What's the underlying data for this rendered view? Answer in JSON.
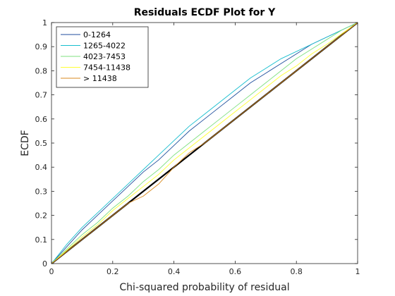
{
  "chart_data": {
    "type": "line",
    "title": "Residuals ECDF Plot for Y",
    "xlabel": "Chi-squared probability of residual",
    "ylabel": "ECDF",
    "xlim": [
      0,
      1
    ],
    "ylim": [
      0,
      1
    ],
    "xticks": [
      "0",
      "0.2",
      "0.4",
      "0.6",
      "0.8",
      "1"
    ],
    "yticks": [
      "0",
      "0.1",
      "0.2",
      "0.3",
      "0.4",
      "0.5",
      "0.6",
      "0.7",
      "0.8",
      "0.9",
      "1"
    ],
    "grid": false,
    "legend_position": "top-left",
    "reference_line": {
      "color": "#000000",
      "points": [
        [
          0,
          0
        ],
        [
          1,
          1
        ]
      ]
    },
    "series": [
      {
        "name": "0-1264",
        "color": "#1f4e9c",
        "points": [
          [
            0,
            0
          ],
          [
            0.05,
            0.07
          ],
          [
            0.1,
            0.14
          ],
          [
            0.15,
            0.2
          ],
          [
            0.2,
            0.26
          ],
          [
            0.25,
            0.32
          ],
          [
            0.3,
            0.38
          ],
          [
            0.35,
            0.43
          ],
          [
            0.4,
            0.49
          ],
          [
            0.45,
            0.55
          ],
          [
            0.5,
            0.6
          ],
          [
            0.55,
            0.65
          ],
          [
            0.6,
            0.7
          ],
          [
            0.65,
            0.75
          ],
          [
            0.7,
            0.79
          ],
          [
            0.75,
            0.83
          ],
          [
            0.8,
            0.87
          ],
          [
            0.85,
            0.91
          ],
          [
            0.9,
            0.94
          ],
          [
            0.95,
            0.97
          ],
          [
            1,
            1
          ]
        ]
      },
      {
        "name": "1265-4022",
        "color": "#17becf",
        "points": [
          [
            0,
            0
          ],
          [
            0.05,
            0.08
          ],
          [
            0.1,
            0.15
          ],
          [
            0.15,
            0.21
          ],
          [
            0.2,
            0.27
          ],
          [
            0.25,
            0.33
          ],
          [
            0.3,
            0.39
          ],
          [
            0.35,
            0.45
          ],
          [
            0.4,
            0.51
          ],
          [
            0.45,
            0.57
          ],
          [
            0.5,
            0.62
          ],
          [
            0.55,
            0.67
          ],
          [
            0.6,
            0.72
          ],
          [
            0.65,
            0.77
          ],
          [
            0.7,
            0.81
          ],
          [
            0.75,
            0.85
          ],
          [
            0.8,
            0.88
          ],
          [
            0.85,
            0.91
          ],
          [
            0.9,
            0.94
          ],
          [
            0.95,
            0.97
          ],
          [
            1,
            1
          ]
        ]
      },
      {
        "name": "4023-7453",
        "color": "#7fe07f",
        "points": [
          [
            0,
            0
          ],
          [
            0.05,
            0.06
          ],
          [
            0.1,
            0.12
          ],
          [
            0.15,
            0.17
          ],
          [
            0.2,
            0.23
          ],
          [
            0.25,
            0.28
          ],
          [
            0.3,
            0.34
          ],
          [
            0.35,
            0.39
          ],
          [
            0.4,
            0.45
          ],
          [
            0.45,
            0.5
          ],
          [
            0.5,
            0.55
          ],
          [
            0.55,
            0.6
          ],
          [
            0.6,
            0.65
          ],
          [
            0.65,
            0.7
          ],
          [
            0.7,
            0.75
          ],
          [
            0.75,
            0.8
          ],
          [
            0.8,
            0.85
          ],
          [
            0.85,
            0.89
          ],
          [
            0.9,
            0.93
          ],
          [
            0.95,
            0.97
          ],
          [
            1,
            1
          ]
        ]
      },
      {
        "name": "7454-11438",
        "color": "#ffff33",
        "points": [
          [
            0,
            0
          ],
          [
            0.05,
            0.055
          ],
          [
            0.1,
            0.11
          ],
          [
            0.15,
            0.16
          ],
          [
            0.2,
            0.22
          ],
          [
            0.25,
            0.27
          ],
          [
            0.3,
            0.32
          ],
          [
            0.35,
            0.37
          ],
          [
            0.4,
            0.43
          ],
          [
            0.45,
            0.48
          ],
          [
            0.5,
            0.53
          ],
          [
            0.55,
            0.58
          ],
          [
            0.6,
            0.63
          ],
          [
            0.65,
            0.68
          ],
          [
            0.7,
            0.73
          ],
          [
            0.75,
            0.78
          ],
          [
            0.8,
            0.82
          ],
          [
            0.85,
            0.87
          ],
          [
            0.9,
            0.91
          ],
          [
            0.95,
            0.955
          ],
          [
            1,
            1
          ]
        ]
      },
      {
        "name": "> 11438",
        "color": "#d98a1f",
        "points": [
          [
            0,
            0
          ],
          [
            0.05,
            0.05
          ],
          [
            0.1,
            0.1
          ],
          [
            0.15,
            0.15
          ],
          [
            0.2,
            0.2
          ],
          [
            0.25,
            0.25
          ],
          [
            0.3,
            0.28
          ],
          [
            0.35,
            0.33
          ],
          [
            0.4,
            0.4
          ],
          [
            0.45,
            0.46
          ],
          [
            0.5,
            0.5
          ],
          [
            0.55,
            0.55
          ],
          [
            0.6,
            0.6
          ],
          [
            0.65,
            0.65
          ],
          [
            0.7,
            0.7
          ],
          [
            0.75,
            0.75
          ],
          [
            0.8,
            0.8
          ],
          [
            0.85,
            0.85
          ],
          [
            0.9,
            0.9
          ],
          [
            0.95,
            0.95
          ],
          [
            1,
            1
          ]
        ]
      }
    ]
  }
}
